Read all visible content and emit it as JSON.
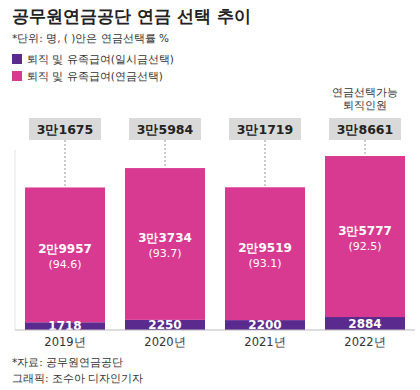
{
  "chart_data": {
    "type": "bar",
    "title": "공무원연금공단 연금 선택 추이",
    "subtitle": "*단위: 명, ( )안은 연금선택률 %",
    "categories": [
      "2019년",
      "2020년",
      "2021년",
      "2022년"
    ],
    "series": [
      {
        "name": "퇴직 및 유족급여(일시금선택)",
        "color": "#5b2a8e",
        "values": [
          1718,
          2250,
          2200,
          2884
        ],
        "value_labels": [
          "1718",
          "2250",
          "2200",
          "2884"
        ]
      },
      {
        "name": "퇴직 및 유족급여(연금선택)",
        "color": "#d83a92",
        "values": [
          29957,
          33734,
          29519,
          35777
        ],
        "value_labels": [
          "2만9957",
          "3만3734",
          "2만9519",
          "3만5777"
        ],
        "rate_labels": [
          "(94.6)",
          "(93.7)",
          "(93.1)",
          "(92.5)"
        ]
      }
    ],
    "totals": {
      "values": [
        31675,
        35984,
        31719,
        38661
      ],
      "value_labels": [
        "3만1675",
        "3만5984",
        "3만1719",
        "3만8661"
      ]
    },
    "annotation": {
      "lines": [
        "연금선택가능",
        "퇴직인원"
      ],
      "category": "2022년"
    },
    "ylim": [
      0,
      40000
    ],
    "yticks": [],
    "stacked": true,
    "data_labels": true,
    "grid": false,
    "legend": "top-left",
    "tick_labels": "x",
    "source": "*자료: 공무원연금공단",
    "credit": "그래픽: 조수아 디자인기자"
  }
}
